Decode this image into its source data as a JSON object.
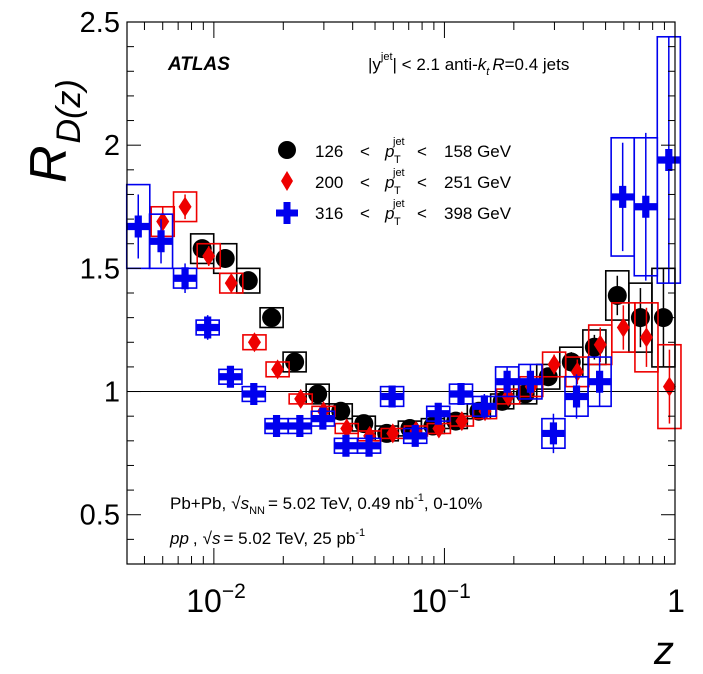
{
  "chart_data": {
    "type": "scatter",
    "title": "",
    "experiment_label": "ATLAS",
    "selection_label": {
      "prefix": "|y",
      "sup": "jet",
      "rest": "| < 2.1 anti-",
      "k": "k",
      "k_sub": "t",
      "R": "R",
      "R_value": "=0.4 jets"
    },
    "xlabel": "z",
    "ylabel": {
      "main": "R",
      "sub": "D(z)"
    },
    "x_scale": "log",
    "xlim": [
      0.0042,
      1.0
    ],
    "ylim": [
      0.3,
      2.5
    ],
    "x_ticks": [
      {
        "base": "10",
        "exp": "−2"
      },
      {
        "base": "10",
        "exp": "−1"
      },
      {
        "base": "1",
        "exp": ""
      }
    ],
    "y_ticks": [
      "0.5",
      "1",
      "1.5",
      "2",
      "2.5"
    ],
    "y_tick_values": [
      0.5,
      1,
      1.5,
      2,
      2.5
    ],
    "reference_line": 1.0,
    "legend_position": "upper-center",
    "series": [
      {
        "name": "126 < pT jet < 158 GeV",
        "label_parts": {
          "lo": "126",
          "lt1": "<",
          "p": "p",
          "sub": "T",
          "sup": "jet",
          "lt2": "<",
          "hi": "158 GeV"
        },
        "color": "#000000",
        "marker": "circle",
        "points": [
          {
            "z": 0.0089,
            "y": 1.58,
            "sys": 0.06,
            "stat": 0.03
          },
          {
            "z": 0.0112,
            "y": 1.54,
            "sys": 0.06,
            "stat": 0.03
          },
          {
            "z": 0.0141,
            "y": 1.45,
            "sys": 0.05,
            "stat": 0.03
          },
          {
            "z": 0.0178,
            "y": 1.3,
            "sys": 0.04,
            "stat": 0.02
          },
          {
            "z": 0.0224,
            "y": 1.12,
            "sys": 0.04,
            "stat": 0.02
          },
          {
            "z": 0.0282,
            "y": 0.99,
            "sys": 0.04,
            "stat": 0.02
          },
          {
            "z": 0.0355,
            "y": 0.92,
            "sys": 0.03,
            "stat": 0.02
          },
          {
            "z": 0.0447,
            "y": 0.87,
            "sys": 0.03,
            "stat": 0.02
          },
          {
            "z": 0.0562,
            "y": 0.83,
            "sys": 0.03,
            "stat": 0.02
          },
          {
            "z": 0.0708,
            "y": 0.85,
            "sys": 0.03,
            "stat": 0.02
          },
          {
            "z": 0.0891,
            "y": 0.86,
            "sys": 0.03,
            "stat": 0.02
          },
          {
            "z": 0.112,
            "y": 0.88,
            "sys": 0.03,
            "stat": 0.02
          },
          {
            "z": 0.141,
            "y": 0.92,
            "sys": 0.03,
            "stat": 0.02
          },
          {
            "z": 0.178,
            "y": 0.96,
            "sys": 0.03,
            "stat": 0.02
          },
          {
            "z": 0.224,
            "y": 0.99,
            "sys": 0.04,
            "stat": 0.03
          },
          {
            "z": 0.282,
            "y": 1.06,
            "sys": 0.05,
            "stat": 0.03
          },
          {
            "z": 0.355,
            "y": 1.12,
            "sys": 0.06,
            "stat": 0.04
          },
          {
            "z": 0.447,
            "y": 1.18,
            "sys": 0.07,
            "stat": 0.05
          },
          {
            "z": 0.562,
            "y": 1.39,
            "sys": 0.1,
            "stat": 0.08
          },
          {
            "z": 0.708,
            "y": 1.3,
            "sys": 0.14,
            "stat": 0.12
          },
          {
            "z": 0.891,
            "y": 1.3,
            "sys": 0.2,
            "stat": 0.2
          }
        ]
      },
      {
        "name": "200 < pT jet < 251 GeV",
        "label_parts": {
          "lo": "200",
          "lt1": "<",
          "p": "p",
          "sub": "T",
          "sup": "jet",
          "lt2": "<",
          "hi": "251 GeV"
        },
        "color": "#ee0000",
        "marker": "diamond",
        "points": [
          {
            "z": 0.006,
            "y": 1.69,
            "sys": 0.06,
            "stat": 0.06
          },
          {
            "z": 0.0075,
            "y": 1.75,
            "sys": 0.06,
            "stat": 0.05
          },
          {
            "z": 0.0095,
            "y": 1.55,
            "sys": 0.05,
            "stat": 0.04
          },
          {
            "z": 0.0119,
            "y": 1.44,
            "sys": 0.04,
            "stat": 0.03
          },
          {
            "z": 0.015,
            "y": 1.2,
            "sys": 0.03,
            "stat": 0.02
          },
          {
            "z": 0.0189,
            "y": 1.09,
            "sys": 0.03,
            "stat": 0.02
          },
          {
            "z": 0.0238,
            "y": 0.97,
            "sys": 0.02,
            "stat": 0.02
          },
          {
            "z": 0.0299,
            "y": 0.92,
            "sys": 0.02,
            "stat": 0.02
          },
          {
            "z": 0.0377,
            "y": 0.85,
            "sys": 0.02,
            "stat": 0.02
          },
          {
            "z": 0.0474,
            "y": 0.82,
            "sys": 0.02,
            "stat": 0.02
          },
          {
            "z": 0.0597,
            "y": 0.83,
            "sys": 0.02,
            "stat": 0.02
          },
          {
            "z": 0.0752,
            "y": 0.84,
            "sys": 0.02,
            "stat": 0.02
          },
          {
            "z": 0.0946,
            "y": 0.85,
            "sys": 0.02,
            "stat": 0.02
          },
          {
            "z": 0.119,
            "y": 0.88,
            "sys": 0.02,
            "stat": 0.02
          },
          {
            "z": 0.15,
            "y": 0.92,
            "sys": 0.03,
            "stat": 0.02
          },
          {
            "z": 0.189,
            "y": 0.98,
            "sys": 0.03,
            "stat": 0.02
          },
          {
            "z": 0.238,
            "y": 1.02,
            "sys": 0.04,
            "stat": 0.03
          },
          {
            "z": 0.299,
            "y": 1.11,
            "sys": 0.05,
            "stat": 0.04
          },
          {
            "z": 0.377,
            "y": 1.08,
            "sys": 0.06,
            "stat": 0.05
          },
          {
            "z": 0.474,
            "y": 1.19,
            "sys": 0.08,
            "stat": 0.07
          },
          {
            "z": 0.597,
            "y": 1.26,
            "sys": 0.1,
            "stat": 0.09
          },
          {
            "z": 0.752,
            "y": 1.22,
            "sys": 0.14,
            "stat": 0.12
          },
          {
            "z": 0.946,
            "y": 1.02,
            "sys": 0.17,
            "stat": 0.15
          }
        ]
      },
      {
        "name": "316 < pT jet < 398 GeV",
        "label_parts": {
          "lo": "316",
          "lt1": "<",
          "p": "p",
          "sub": "T",
          "sup": "jet",
          "lt2": "<",
          "hi": "398 GeV"
        },
        "color": "#0000ee",
        "marker": "cross",
        "points": [
          {
            "z": 0.0047,
            "y": 1.67,
            "sys": 0.17,
            "stat": 0.13
          },
          {
            "z": 0.0059,
            "y": 1.61,
            "sys": 0.11,
            "stat": 0.09
          },
          {
            "z": 0.0075,
            "y": 1.46,
            "sys": 0.04,
            "stat": 0.06
          },
          {
            "z": 0.0094,
            "y": 1.26,
            "sys": 0.03,
            "stat": 0.05
          },
          {
            "z": 0.0118,
            "y": 1.06,
            "sys": 0.03,
            "stat": 0.04
          },
          {
            "z": 0.0149,
            "y": 0.99,
            "sys": 0.03,
            "stat": 0.04
          },
          {
            "z": 0.0187,
            "y": 0.86,
            "sys": 0.03,
            "stat": 0.03
          },
          {
            "z": 0.0236,
            "y": 0.86,
            "sys": 0.03,
            "stat": 0.03
          },
          {
            "z": 0.0297,
            "y": 0.89,
            "sys": 0.03,
            "stat": 0.03
          },
          {
            "z": 0.0374,
            "y": 0.78,
            "sys": 0.03,
            "stat": 0.04
          },
          {
            "z": 0.0471,
            "y": 0.78,
            "sys": 0.03,
            "stat": 0.04
          },
          {
            "z": 0.0593,
            "y": 0.98,
            "sys": 0.04,
            "stat": 0.04
          },
          {
            "z": 0.0747,
            "y": 0.82,
            "sys": 0.03,
            "stat": 0.04
          },
          {
            "z": 0.094,
            "y": 0.91,
            "sys": 0.03,
            "stat": 0.04
          },
          {
            "z": 0.118,
            "y": 0.99,
            "sys": 0.04,
            "stat": 0.04
          },
          {
            "z": 0.149,
            "y": 0.94,
            "sys": 0.04,
            "stat": 0.05
          },
          {
            "z": 0.187,
            "y": 1.04,
            "sys": 0.06,
            "stat": 0.06
          },
          {
            "z": 0.236,
            "y": 1.04,
            "sys": 0.07,
            "stat": 0.07
          },
          {
            "z": 0.297,
            "y": 0.83,
            "sys": 0.06,
            "stat": 0.08
          },
          {
            "z": 0.374,
            "y": 0.98,
            "sys": 0.08,
            "stat": 0.09
          },
          {
            "z": 0.471,
            "y": 1.04,
            "sys": 0.1,
            "stat": 0.1
          },
          {
            "z": 0.593,
            "y": 1.79,
            "sys": 0.24,
            "stat": 0.22
          },
          {
            "z": 0.747,
            "y": 1.75,
            "sys": 0.28,
            "stat": 0.3
          },
          {
            "z": 0.94,
            "y": 1.94,
            "sys": 0.5,
            "stat": 0.5
          }
        ]
      }
    ]
  },
  "info": {
    "line1": {
      "system": "Pb+Pb,",
      "sqrt": "√",
      "s": "s",
      "s_sub": "NN",
      "energy": "= 5.02 TeV, 0.49 nb",
      "exp": "-1",
      "cent": ", 0-10%"
    },
    "line2": {
      "system": "pp",
      "comma": ",",
      "sqrt": "√",
      "s": "s",
      "energy": "= 5.02 TeV, 25 pb",
      "exp": "-1"
    }
  }
}
